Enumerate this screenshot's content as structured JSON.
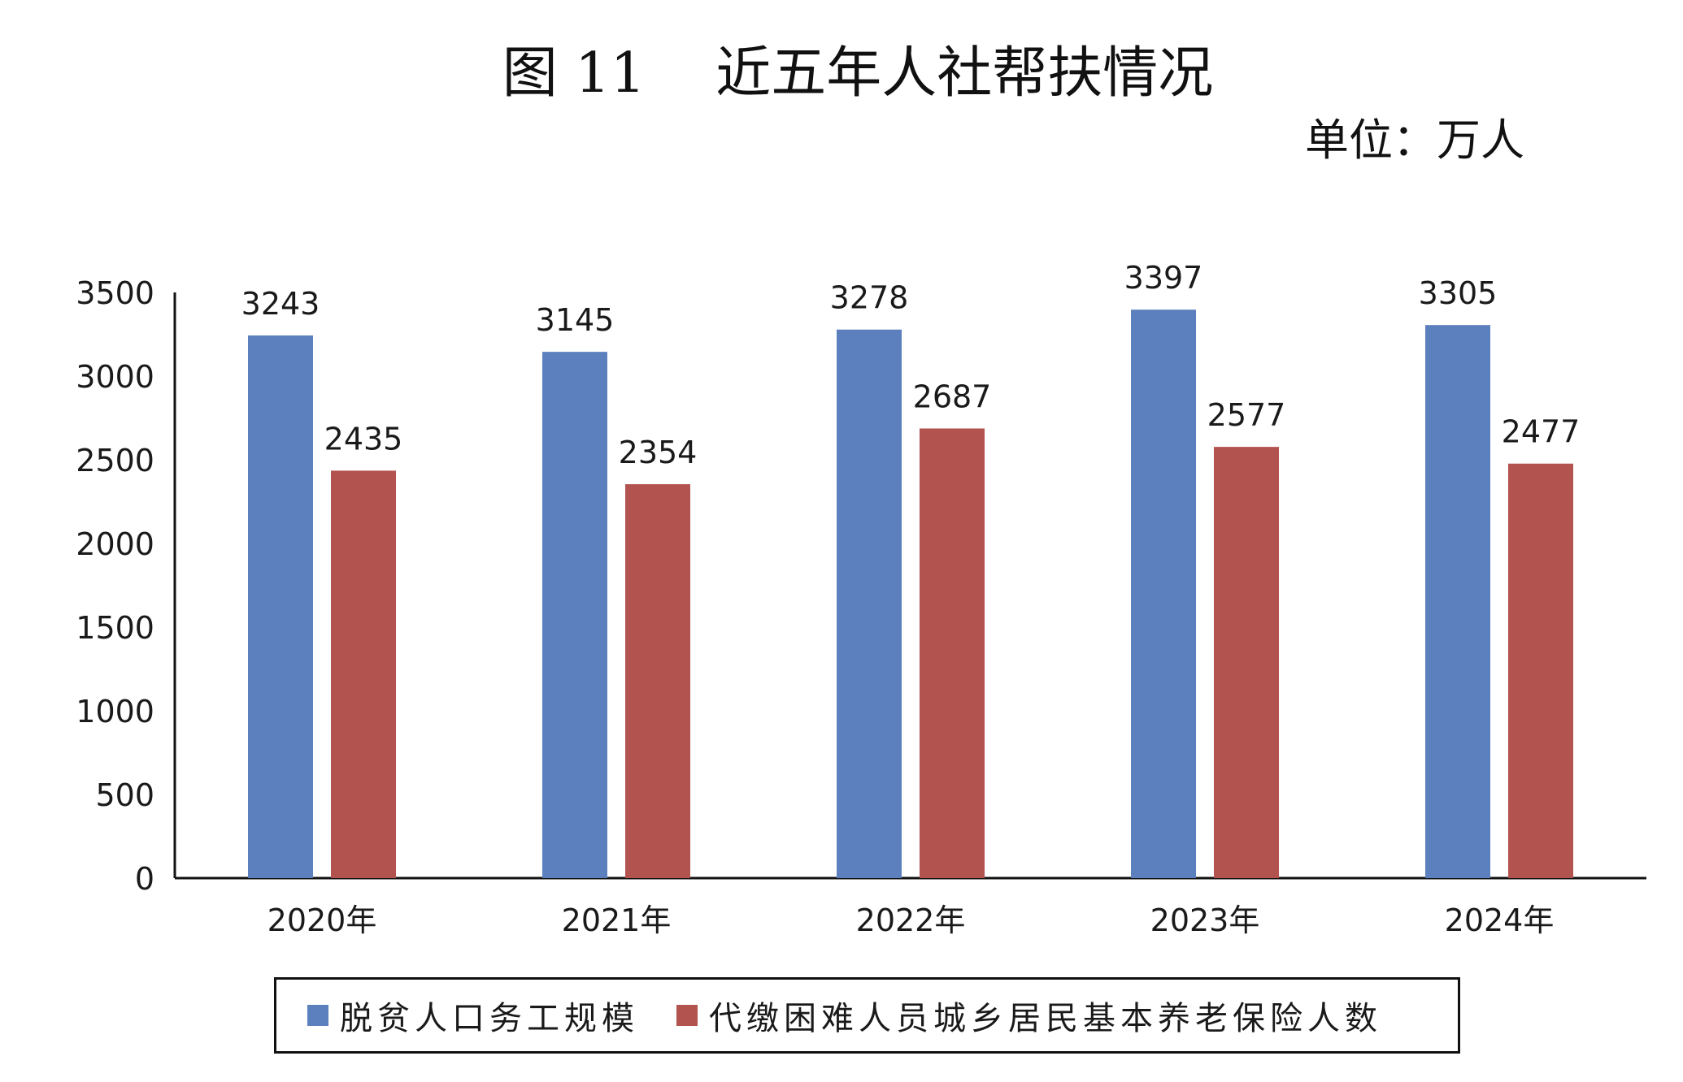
{
  "chart_data": {
    "type": "bar",
    "title": "图 11    近五年人社帮扶情况",
    "unit": "单位：万人",
    "categories": [
      "2020年",
      "2021年",
      "2022年",
      "2023年",
      "2024年"
    ],
    "series": [
      {
        "name": "脱贫人口务工规模",
        "color": "#5b80bd",
        "values": [
          3243,
          3145,
          3278,
          3397,
          3305
        ]
      },
      {
        "name": "代缴困难人员城乡居民基本养老保险人数",
        "color": "#b3534f",
        "values": [
          2435,
          2354,
          2687,
          2577,
          2477
        ]
      }
    ],
    "ylim": [
      0,
      3500
    ],
    "yticks": [
      0,
      500,
      1000,
      1500,
      2000,
      2500,
      3000,
      3500
    ],
    "grid": false,
    "legend_position": "bottom"
  }
}
